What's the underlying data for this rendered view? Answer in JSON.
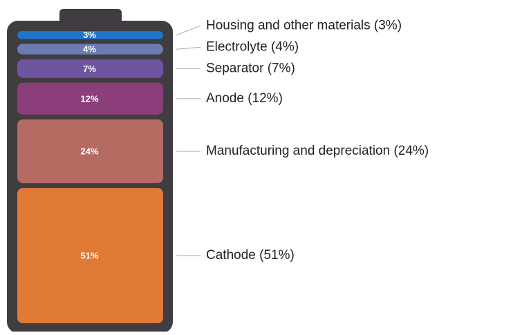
{
  "chart_data": {
    "type": "battery",
    "categories": [
      "Housing and other materials",
      "Electrolyte",
      "Separator",
      "Anode",
      "Manufacturing and depreciation",
      "Cathode"
    ],
    "values": [
      3,
      4,
      7,
      12,
      24,
      51
    ],
    "value_labels": [
      "3%",
      "4%",
      "7%",
      "12%",
      "24%",
      "51%"
    ],
    "labels": [
      "Housing and other materials (3%)",
      "Electrolyte (4%)",
      "Separator (7%)",
      "Anode (12%)",
      "Manufacturing and depreciation (24%)",
      "Cathode (51%)"
    ],
    "colors": [
      "#1f76c9",
      "#6a7cb0",
      "#6f55a0",
      "#8b3f7a",
      "#b56a62",
      "#e07a35"
    ]
  }
}
